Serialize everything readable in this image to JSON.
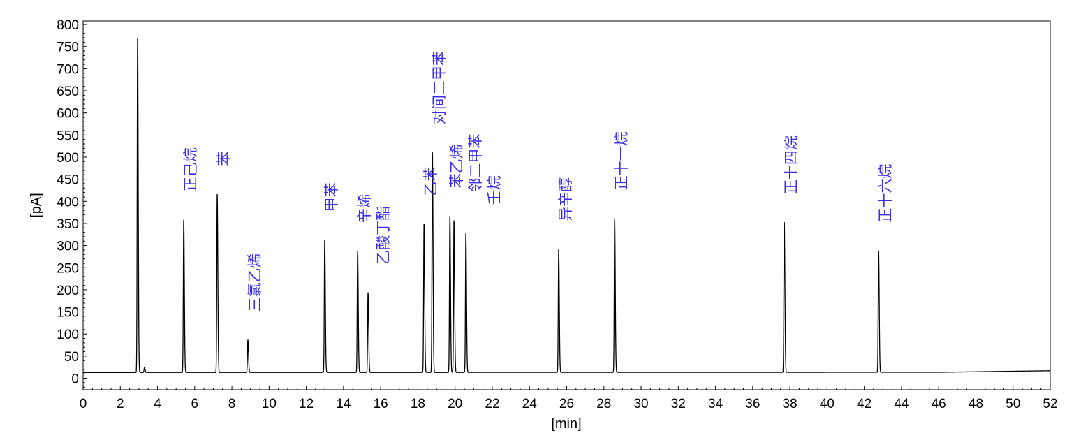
{
  "chart_data": {
    "type": "line",
    "title": "",
    "xlabel": "[min]",
    "ylabel": "[pA]",
    "xlim": [
      0,
      52
    ],
    "ylim": [
      -26,
      808
    ],
    "xticks": [
      0,
      2,
      4,
      6,
      8,
      10,
      12,
      14,
      16,
      18,
      20,
      22,
      24,
      26,
      28,
      30,
      32,
      34,
      36,
      38,
      40,
      42,
      44,
      46,
      48,
      50,
      52
    ],
    "yticks": [
      0,
      50,
      100,
      150,
      200,
      250,
      300,
      350,
      400,
      450,
      500,
      550,
      600,
      650,
      700,
      750,
      800
    ],
    "grid": false,
    "baseline_pA": [
      [
        0,
        13
      ],
      [
        46,
        13.5
      ],
      [
        52,
        17
      ]
    ],
    "peaks": [
      {
        "time": 2.93,
        "height": 771,
        "label": ""
      },
      {
        "time": 3.3,
        "height": 25,
        "label": ""
      },
      {
        "time": 5.41,
        "height": 359,
        "label": "正己烷"
      },
      {
        "time": 7.21,
        "height": 417,
        "label": "苯"
      },
      {
        "time": 8.86,
        "height": 87,
        "label": "三氯乙烯"
      },
      {
        "time": 12.99,
        "height": 313,
        "label": "甲苯"
      },
      {
        "time": 14.76,
        "height": 288,
        "label": "辛烯"
      },
      {
        "time": 15.32,
        "height": 194,
        "label": "乙酸丁酯"
      },
      {
        "time": 18.33,
        "height": 349,
        "label": "乙苯"
      },
      {
        "time": 18.78,
        "height": 511,
        "label": "对间二甲苯"
      },
      {
        "time": 19.72,
        "height": 367,
        "label": "苯乙烯"
      },
      {
        "time": 19.94,
        "height": 357,
        "label": "邻二甲苯"
      },
      {
        "time": 20.58,
        "height": 329,
        "label": "壬烷"
      },
      {
        "time": 25.57,
        "height": 292,
        "label": "异辛醇"
      },
      {
        "time": 28.58,
        "height": 362,
        "label": "正十一烷"
      },
      {
        "time": 37.7,
        "height": 353,
        "label": "正十四烷"
      },
      {
        "time": 42.77,
        "height": 289,
        "label": "正十六烷"
      }
    ],
    "colors": {
      "trace": "#000000",
      "labels": "#3a2ee8"
    }
  }
}
